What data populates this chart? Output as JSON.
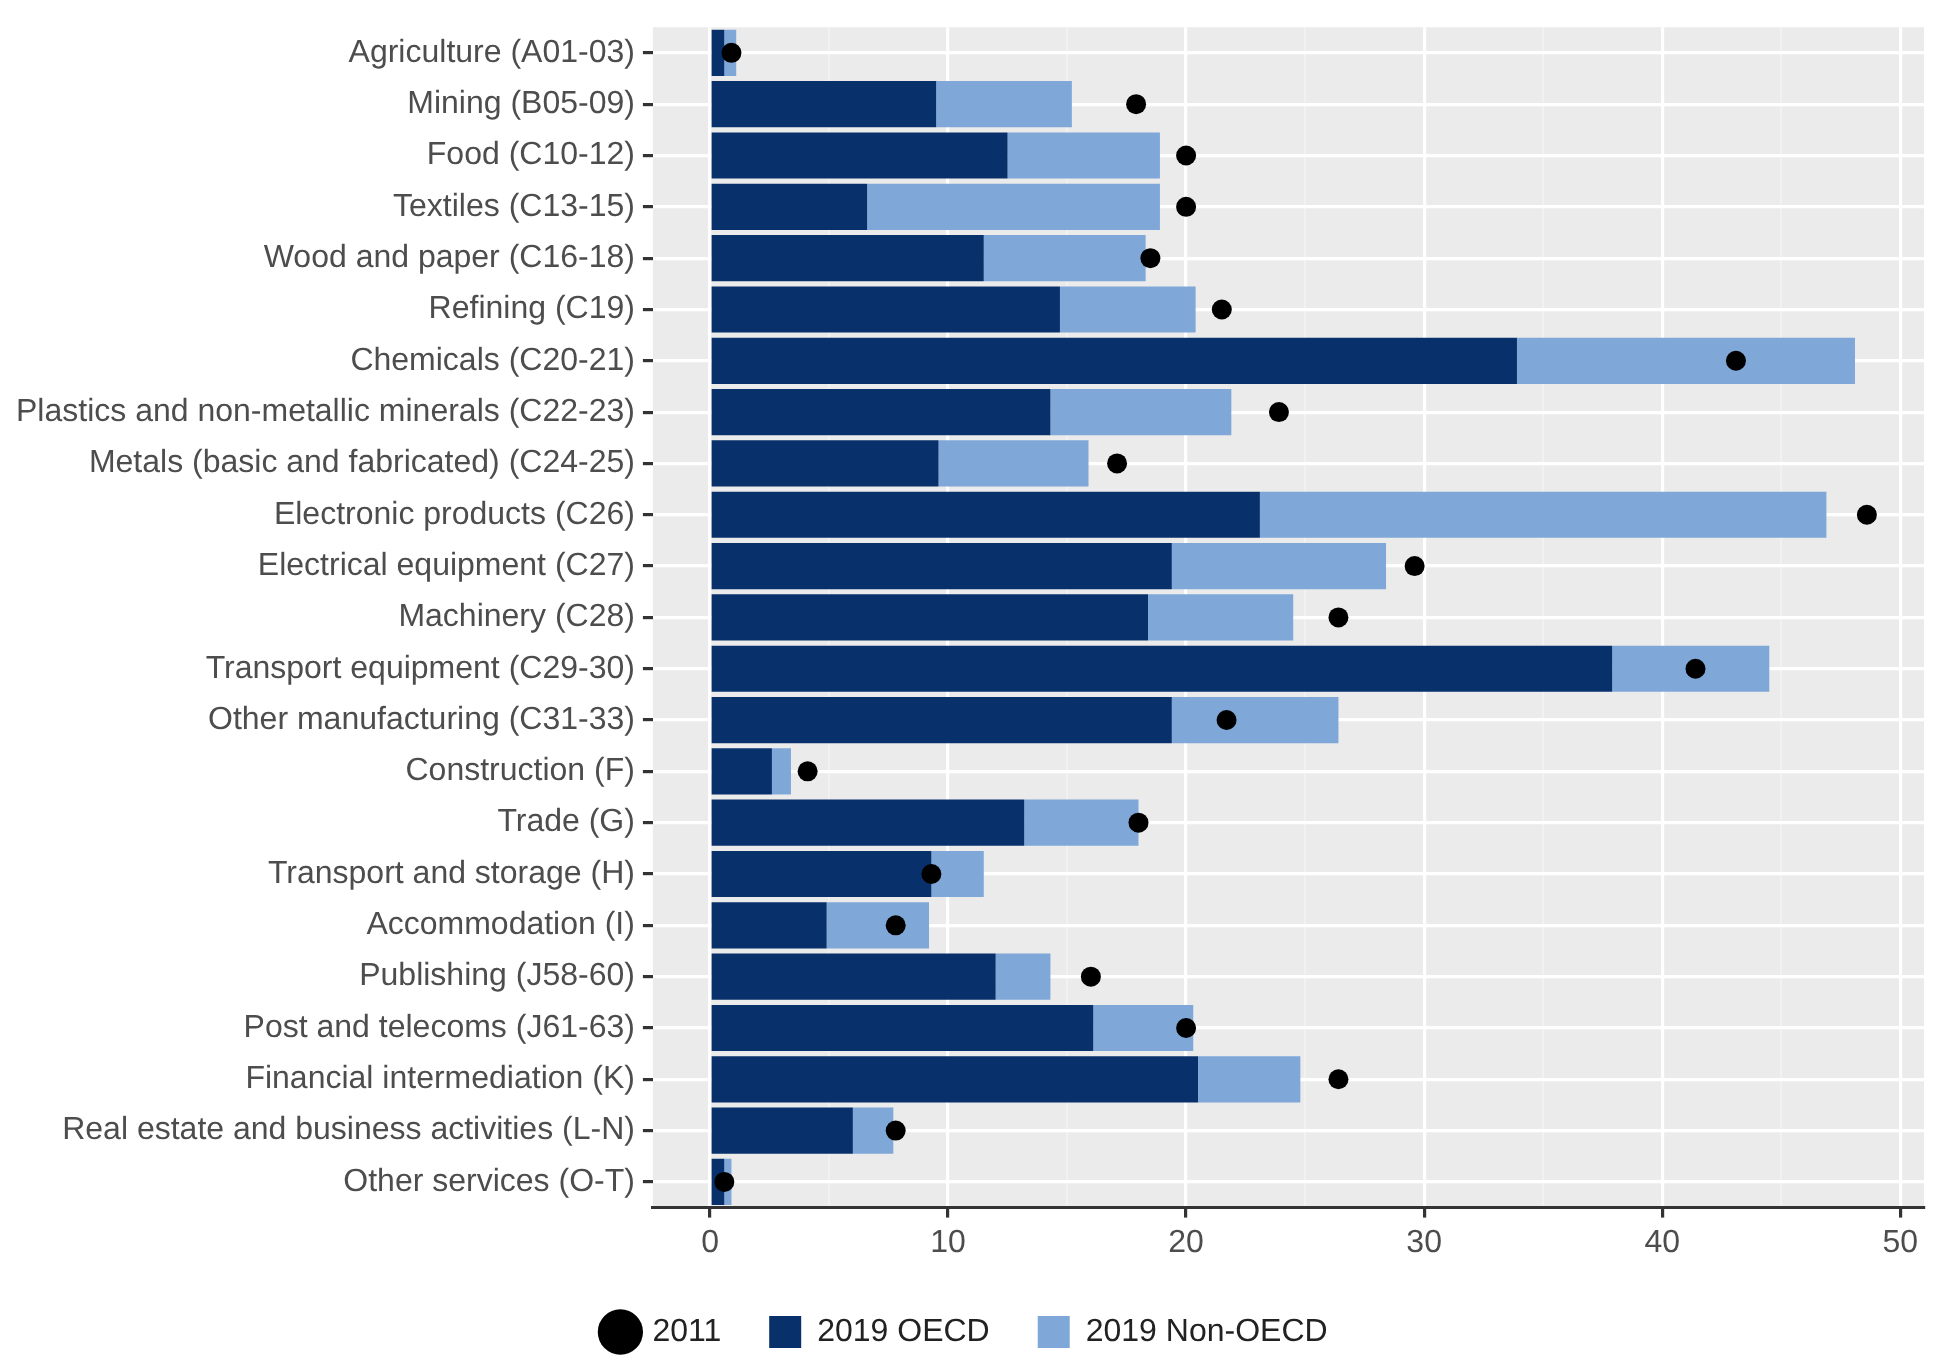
{
  "chart_data": {
    "type": "bar",
    "orientation": "horizontal",
    "stacked": true,
    "categories": [
      "Agriculture (A01-03)",
      "Mining (B05-09)",
      "Food (C10-12)",
      "Textiles (C13-15)",
      "Wood and paper (C16-18)",
      "Refining (C19)",
      "Chemicals (C20-21)",
      "Plastics and non-metallic minerals (C22-23)",
      "Metals (basic and fabricated) (C24-25)",
      "Electronic products (C26)",
      "Electrical equipment (C27)",
      "Machinery (C28)",
      "Transport equipment (C29-30)",
      "Other manufacturing (C31-33)",
      "Construction (F)",
      "Trade (G)",
      "Transport and storage (H)",
      "Accommodation (I)",
      "Publishing (J58-60)",
      "Post and telecoms (J61-63)",
      "Financial intermediation (K)",
      "Real estate and business activities (L-N)",
      "Other services (O-T)"
    ],
    "series": [
      {
        "name": "2019 OECD",
        "color": "#08306b",
        "values": [
          0.6,
          9.5,
          12.5,
          6.6,
          11.5,
          14.7,
          33.9,
          14.3,
          9.6,
          23.1,
          19.4,
          18.4,
          37.9,
          19.4,
          2.6,
          13.2,
          9.3,
          4.9,
          12.0,
          16.1,
          20.5,
          6.0,
          0.6
        ]
      },
      {
        "name": "2019 Non-OECD",
        "color": "#7fa7d8",
        "values": [
          0.5,
          5.7,
          6.4,
          12.3,
          6.8,
          5.7,
          14.2,
          7.6,
          6.3,
          23.8,
          9.0,
          6.1,
          6.6,
          7.0,
          0.8,
          4.8,
          2.2,
          4.3,
          2.3,
          4.2,
          4.3,
          1.7,
          0.3
        ]
      },
      {
        "name": "2011",
        "type": "scatter",
        "color": "#000000",
        "values": [
          0.9,
          17.9,
          20.0,
          20.0,
          18.5,
          21.5,
          43.1,
          23.9,
          17.1,
          48.6,
          29.6,
          26.4,
          41.4,
          21.7,
          4.1,
          18.0,
          9.3,
          7.8,
          16.0,
          20.0,
          26.4,
          7.8,
          0.6
        ]
      }
    ],
    "xlim": [
      -2.4,
      51
    ],
    "xticks": [
      0,
      {
        "value": 5,
        "label": null
      },
      10,
      {
        "value": 15,
        "label": null
      },
      20,
      {
        "value": 25,
        "label": null
      },
      30,
      {
        "value": 35,
        "label": null
      },
      40,
      {
        "value": 45,
        "label": null
      },
      50
    ],
    "grid": true,
    "legend": "bottom",
    "marker": "circle"
  }
}
